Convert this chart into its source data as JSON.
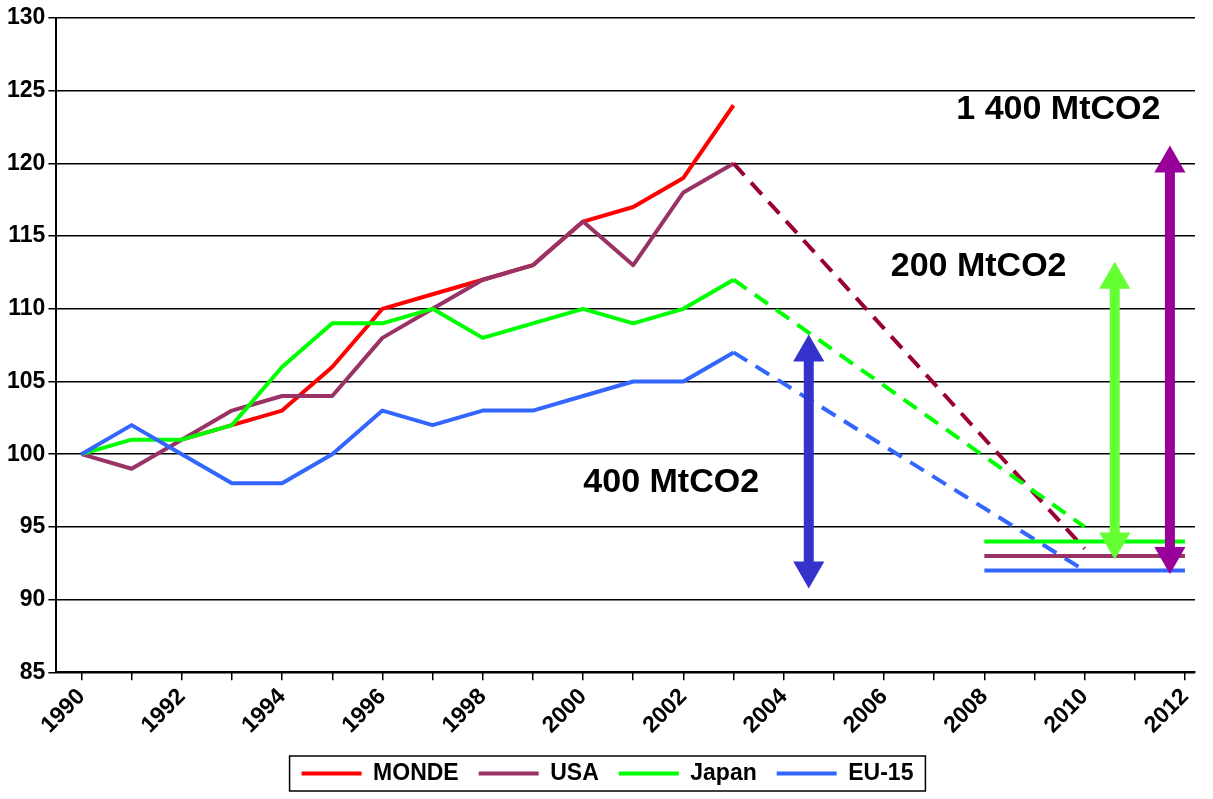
{
  "chart_data": {
    "type": "line",
    "xlim": [
      1989.5,
      2012.2
    ],
    "ylim": [
      85,
      130
    ],
    "xticks": [
      1990,
      {
        "value": 1991,
        "label": null
      },
      1992,
      {
        "value": 1993,
        "label": null
      },
      1994,
      {
        "value": 1995,
        "label": null
      },
      1996,
      {
        "value": 1997,
        "label": null
      },
      1998,
      {
        "value": 1999,
        "label": null
      },
      2000,
      {
        "value": 2001,
        "label": null
      },
      2002,
      {
        "value": 2003,
        "label": null
      },
      2004,
      {
        "value": 2005,
        "label": null
      },
      2006,
      {
        "value": 2007,
        "label": null
      },
      2008,
      {
        "value": 2009,
        "label": null
      },
      2010,
      {
        "value": 2011,
        "label": null
      },
      2012
    ],
    "yticks": [
      85,
      90,
      95,
      100,
      105,
      110,
      115,
      120,
      125,
      130
    ],
    "grid": "y",
    "legend": "bottom",
    "marker": "none",
    "series": [
      {
        "name": "MONDE",
        "color": "#ff0000",
        "x": [
          1992,
          1993,
          1994,
          1995,
          1996,
          1997,
          1998,
          1999,
          2000,
          2001,
          2002,
          2003
        ],
        "values": [
          101,
          102,
          103,
          106,
          110,
          111,
          112,
          113,
          116,
          117,
          119,
          124
        ]
      },
      {
        "name": "USA",
        "color": "#993366",
        "x": [
          1990,
          1991,
          1992,
          1993,
          1994,
          1995,
          1996,
          1997,
          1998,
          1999,
          2000,
          2001,
          2002,
          2003
        ],
        "values": [
          100,
          99,
          101,
          103,
          104,
          104,
          108,
          110,
          112,
          113,
          116,
          113,
          118,
          120
        ]
      },
      {
        "name": "Japan",
        "color": "#00ff00",
        "x": [
          1990,
          1991,
          1992,
          1993,
          1994,
          1995,
          1996,
          1997,
          1998,
          1999,
          2000,
          2001,
          2002,
          2003
        ],
        "values": [
          100,
          101,
          101,
          102,
          106,
          109,
          109,
          110,
          108,
          109,
          110,
          109,
          110,
          112
        ]
      },
      {
        "name": "EU-15",
        "color": "#3366ff",
        "x": [
          1990,
          1991,
          1992,
          1993,
          1994,
          1995,
          1996,
          1997,
          1998,
          1999,
          2000,
          2001,
          2002,
          2003
        ],
        "values": [
          100,
          102,
          100,
          98,
          98,
          100,
          103,
          102,
          103,
          103,
          104,
          105,
          105,
          107
        ]
      },
      {
        "color": "#990033",
        "line_style": "dashed",
        "x": [
          2003,
          2010
        ],
        "values": [
          120,
          93.5
        ]
      },
      {
        "color": "#00ff00",
        "line_style": "dashed",
        "x": [
          2003,
          2010
        ],
        "values": [
          112,
          95
        ]
      },
      {
        "color": "#3366ff",
        "line_style": "dashed",
        "x": [
          2003,
          2010
        ],
        "values": [
          107,
          92
        ]
      },
      {
        "color": "#00ff00",
        "x": [
          2008,
          2012
        ],
        "values": [
          94,
          94
        ]
      },
      {
        "color": "#993366",
        "x": [
          2008,
          2012
        ],
        "values": [
          93,
          93
        ]
      },
      {
        "color": "#3366ff",
        "x": [
          2008,
          2012
        ],
        "values": [
          92,
          92
        ]
      },
      {
        "color": "#3333cc",
        "marker": "triangle",
        "x": [
          2004.5,
          2004.5
        ],
        "values": [
          92,
          107
        ]
      },
      {
        "color": "#66ff33",
        "marker": "triangle",
        "x": [
          2010.6,
          2010.6
        ],
        "values": [
          94,
          112
        ]
      },
      {
        "color": "#990099",
        "marker": "triangle",
        "x": [
          2011.7,
          2011.7
        ],
        "values": [
          93,
          120
        ]
      }
    ],
    "annotations": [
      "400 MtCO2",
      "200 MtCO2",
      "1 400 MtCO2"
    ]
  }
}
